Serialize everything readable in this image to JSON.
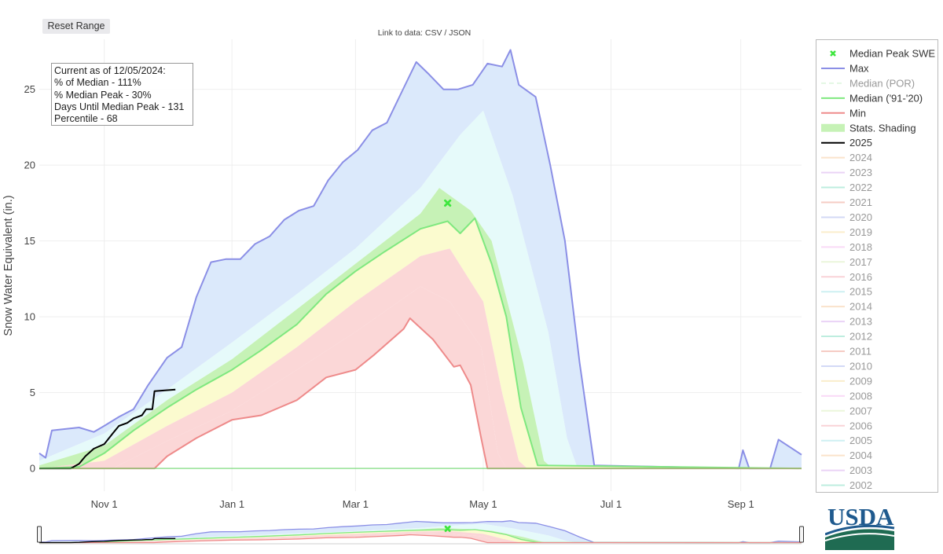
{
  "toolbar": {
    "reset_label": "Reset Range"
  },
  "data_links": {
    "prefix": "Link to data: ",
    "csv": "CSV",
    "separator": " / ",
    "json": "JSON"
  },
  "info_box": {
    "lines": [
      "Current as of 12/05/2024:",
      "% of Median - 111%",
      "% Median Peak - 30%",
      "Days Until Median Peak - 131",
      "Percentile - 68"
    ]
  },
  "colors": {
    "max": "#8b8fe6",
    "median_91_20": "#7fe87f",
    "min": "#ee8a8a",
    "current": "#000000",
    "peak_marker": "#3ee63e",
    "band_outer": "#dbe9fb",
    "band_upper": "#e6fafa",
    "band_mid": "#dff7d4",
    "band_median": "#c6f2b6",
    "band_low": "#fbfbcf",
    "band_lowest": "#fbd7d7"
  },
  "chart_data": {
    "type": "line",
    "xlabel": "",
    "ylabel": "Snow Water Equivalent (in.)",
    "x_axis": {
      "start": "2024-10-01",
      "end": "2025-09-30",
      "ticks": [
        {
          "date": "2024-11-01",
          "label": "Nov 1"
        },
        {
          "date": "2025-01-01",
          "label": "Jan 1"
        },
        {
          "date": "2025-03-01",
          "label": "Mar 1"
        },
        {
          "date": "2025-05-01",
          "label": "May 1"
        },
        {
          "date": "2025-07-01",
          "label": "Jul 1"
        },
        {
          "date": "2025-09-01",
          "label": "Sep 1"
        }
      ]
    },
    "ylim": [
      -1.5,
      28.3
    ],
    "yticks": [
      0,
      5,
      10,
      15,
      20,
      25
    ],
    "grid": true,
    "legend_placement": "right",
    "median_peak": {
      "date": "2025-04-14",
      "value": 17.5
    },
    "series": [
      {
        "name": "Max",
        "points": [
          [
            "2024-10-01",
            1.0
          ],
          [
            "2024-10-04",
            0.7
          ],
          [
            "2024-10-07",
            2.5
          ],
          [
            "2024-10-20",
            2.7
          ],
          [
            "2024-10-27",
            2.4
          ],
          [
            "2024-11-01",
            2.8
          ],
          [
            "2024-11-08",
            3.4
          ],
          [
            "2024-11-15",
            3.9
          ],
          [
            "2024-11-22",
            5.5
          ],
          [
            "2024-12-01",
            7.3
          ],
          [
            "2024-12-08",
            8.0
          ],
          [
            "2024-12-15",
            11.3
          ],
          [
            "2024-12-22",
            13.6
          ],
          [
            "2024-12-29",
            13.8
          ],
          [
            "2025-01-05",
            13.8
          ],
          [
            "2025-01-12",
            14.8
          ],
          [
            "2025-01-19",
            15.3
          ],
          [
            "2025-01-26",
            16.4
          ],
          [
            "2025-02-02",
            17.0
          ],
          [
            "2025-02-09",
            17.3
          ],
          [
            "2025-02-16",
            19.0
          ],
          [
            "2025-02-23",
            20.2
          ],
          [
            "2025-03-02",
            21.0
          ],
          [
            "2025-03-09",
            22.3
          ],
          [
            "2025-03-16",
            22.8
          ],
          [
            "2025-03-23",
            24.8
          ],
          [
            "2025-03-30",
            26.8
          ],
          [
            "2025-04-05",
            26.0
          ],
          [
            "2025-04-12",
            25.0
          ],
          [
            "2025-04-19",
            25.0
          ],
          [
            "2025-04-26",
            25.3
          ],
          [
            "2025-05-03",
            26.7
          ],
          [
            "2025-05-10",
            26.5
          ],
          [
            "2025-05-14",
            27.6
          ],
          [
            "2025-05-18",
            25.3
          ],
          [
            "2025-05-26",
            24.5
          ],
          [
            "2025-06-02",
            20.0
          ],
          [
            "2025-06-09",
            15.0
          ],
          [
            "2025-06-16",
            7.0
          ],
          [
            "2025-06-23",
            0.2
          ],
          [
            "2025-08-31",
            0.0
          ],
          [
            "2025-09-02",
            1.2
          ],
          [
            "2025-09-05",
            0.0
          ],
          [
            "2025-09-15",
            0.0
          ],
          [
            "2025-09-19",
            1.9
          ],
          [
            "2025-09-30",
            0.9
          ]
        ]
      },
      {
        "name": "Median ('91-'20)",
        "points": [
          [
            "2024-10-01",
            0.0
          ],
          [
            "2024-10-20",
            0.1
          ],
          [
            "2024-11-01",
            1.0
          ],
          [
            "2024-11-15",
            2.5
          ],
          [
            "2024-12-01",
            4.0
          ],
          [
            "2024-12-15",
            5.2
          ],
          [
            "2025-01-01",
            6.5
          ],
          [
            "2025-01-15",
            7.8
          ],
          [
            "2025-02-01",
            9.5
          ],
          [
            "2025-02-15",
            11.5
          ],
          [
            "2025-03-01",
            13.0
          ],
          [
            "2025-03-15",
            14.3
          ],
          [
            "2025-04-01",
            15.8
          ],
          [
            "2025-04-14",
            16.3
          ],
          [
            "2025-04-20",
            15.5
          ],
          [
            "2025-04-27",
            16.5
          ],
          [
            "2025-05-05",
            13.5
          ],
          [
            "2025-05-12",
            10.0
          ],
          [
            "2025-05-19",
            4.0
          ],
          [
            "2025-05-27",
            0.2
          ],
          [
            "2025-09-30",
            0.0
          ]
        ]
      },
      {
        "name": "Min",
        "points": [
          [
            "2024-10-01",
            0.0
          ],
          [
            "2024-11-25",
            0.0
          ],
          [
            "2024-12-01",
            0.8
          ],
          [
            "2024-12-15",
            2.0
          ],
          [
            "2025-01-01",
            3.2
          ],
          [
            "2025-01-15",
            3.5
          ],
          [
            "2025-02-01",
            4.5
          ],
          [
            "2025-02-15",
            6.0
          ],
          [
            "2025-03-01",
            6.5
          ],
          [
            "2025-03-10",
            7.5
          ],
          [
            "2025-03-24",
            9.2
          ],
          [
            "2025-03-27",
            9.9
          ],
          [
            "2025-04-07",
            8.5
          ],
          [
            "2025-04-17",
            6.7
          ],
          [
            "2025-04-20",
            6.8
          ],
          [
            "2025-04-25",
            5.5
          ],
          [
            "2025-04-30",
            2.0
          ],
          [
            "2025-05-03",
            0.0
          ],
          [
            "2025-09-30",
            0.0
          ]
        ]
      },
      {
        "name": "2025",
        "points": [
          [
            "2024-10-01",
            0.0
          ],
          [
            "2024-10-16",
            0.0
          ],
          [
            "2024-10-20",
            0.3
          ],
          [
            "2024-10-23",
            0.8
          ],
          [
            "2024-10-27",
            1.3
          ],
          [
            "2024-11-01",
            1.6
          ],
          [
            "2024-11-05",
            2.3
          ],
          [
            "2024-11-08",
            2.8
          ],
          [
            "2024-11-12",
            3.0
          ],
          [
            "2024-11-15",
            3.3
          ],
          [
            "2024-11-19",
            3.5
          ],
          [
            "2024-11-21",
            3.9
          ],
          [
            "2024-11-24",
            3.9
          ],
          [
            "2024-11-25",
            5.1
          ],
          [
            "2024-12-05",
            5.2
          ]
        ]
      }
    ],
    "bands": {
      "outer_max": "Max",
      "upper": [
        [
          "2024-10-01",
          0.5
        ],
        [
          "2024-11-01",
          2.3
        ],
        [
          "2024-12-01",
          5.2
        ],
        [
          "2025-01-01",
          8.3
        ],
        [
          "2025-02-01",
          11.5
        ],
        [
          "2025-03-01",
          14.5
        ],
        [
          "2025-04-01",
          18.5
        ],
        [
          "2025-04-20",
          22.0
        ],
        [
          "2025-05-01",
          23.6
        ],
        [
          "2025-05-15",
          18.0
        ],
        [
          "2025-06-01",
          9.0
        ],
        [
          "2025-06-10",
          2.0
        ],
        [
          "2025-06-15",
          0.0
        ],
        [
          "2025-09-30",
          0.0
        ]
      ],
      "p70": [
        [
          "2024-10-01",
          0.2
        ],
        [
          "2024-11-01",
          1.5
        ],
        [
          "2024-12-01",
          4.5
        ],
        [
          "2025-01-01",
          7.2
        ],
        [
          "2025-02-01",
          10.5
        ],
        [
          "2025-03-01",
          13.5
        ],
        [
          "2025-04-01",
          16.8
        ],
        [
          "2025-04-10",
          18.5
        ],
        [
          "2025-04-25",
          17.0
        ],
        [
          "2025-05-05",
          15.0
        ],
        [
          "2025-05-20",
          7.0
        ],
        [
          "2025-05-30",
          0.5
        ],
        [
          "2025-06-03",
          0.0
        ],
        [
          "2025-09-30",
          0.0
        ]
      ],
      "p30": [
        [
          "2024-10-01",
          0.0
        ],
        [
          "2024-11-01",
          0.5
        ],
        [
          "2024-12-01",
          2.8
        ],
        [
          "2025-01-01",
          5.0
        ],
        [
          "2025-02-01",
          8.0
        ],
        [
          "2025-03-01",
          11.0
        ],
        [
          "2025-04-01",
          14.0
        ],
        [
          "2025-04-15",
          14.5
        ],
        [
          "2025-05-01",
          11.0
        ],
        [
          "2025-05-10",
          5.0
        ],
        [
          "2025-05-18",
          0.5
        ],
        [
          "2025-05-22",
          0.0
        ],
        [
          "2025-09-30",
          0.0
        ]
      ],
      "p10": [
        [
          "2024-10-01",
          0.0
        ],
        [
          "2024-11-05",
          0.0
        ],
        [
          "2024-12-01",
          1.8
        ],
        [
          "2025-01-01",
          3.8
        ],
        [
          "2025-02-01",
          6.5
        ],
        [
          "2025-03-01",
          9.0
        ],
        [
          "2025-04-01",
          12.0
        ],
        [
          "2025-04-15",
          11.0
        ],
        [
          "2025-04-30",
          8.0
        ],
        [
          "2025-05-08",
          1.0
        ],
        [
          "2025-05-12",
          0.0
        ],
        [
          "2025-09-30",
          0.0
        ]
      ]
    }
  },
  "legend": [
    {
      "label": "Median Peak SWE",
      "kind": "marker",
      "color": "#3ee63e",
      "active": true
    },
    {
      "label": "Max",
      "kind": "line",
      "color": "#8b8fe6",
      "active": true
    },
    {
      "label": "Median (POR)",
      "kind": "dash",
      "color": "#c9f0c9",
      "active": false
    },
    {
      "label": "Median ('91-'20)",
      "kind": "line",
      "color": "#7fe87f",
      "active": true
    },
    {
      "label": "Min",
      "kind": "line",
      "color": "#ee8a8a",
      "active": true
    },
    {
      "label": "Stats. Shading",
      "kind": "band",
      "color": "#c6f2b6",
      "active": true
    },
    {
      "label": "2025",
      "kind": "line",
      "color": "#000000",
      "active": true
    },
    {
      "label": "2024",
      "kind": "line",
      "color": "#f6c899",
      "active": false
    },
    {
      "label": "2023",
      "kind": "line",
      "color": "#d7a9ee",
      "active": false
    },
    {
      "label": "2022",
      "kind": "line",
      "color": "#7fdcc0",
      "active": false
    },
    {
      "label": "2021",
      "kind": "line",
      "color": "#ef9a8a",
      "active": false
    },
    {
      "label": "2020",
      "kind": "line",
      "color": "#a9b4ee",
      "active": false
    },
    {
      "label": "2019",
      "kind": "line",
      "color": "#f7dc9a",
      "active": false
    },
    {
      "label": "2018",
      "kind": "line",
      "color": "#f4b6f0",
      "active": false
    },
    {
      "label": "2017",
      "kind": "line",
      "color": "#d8efb8",
      "active": false
    },
    {
      "label": "2016",
      "kind": "line",
      "color": "#f5a8b0",
      "active": false
    },
    {
      "label": "2015",
      "kind": "line",
      "color": "#9fe2e6",
      "active": false
    },
    {
      "label": "2014",
      "kind": "line",
      "color": "#f6c899",
      "active": false
    },
    {
      "label": "2013",
      "kind": "line",
      "color": "#d7a9ee",
      "active": false
    },
    {
      "label": "2012",
      "kind": "line",
      "color": "#7fdcc0",
      "active": false
    },
    {
      "label": "2011",
      "kind": "line",
      "color": "#ef9a8a",
      "active": false
    },
    {
      "label": "2010",
      "kind": "line",
      "color": "#a9b4ee",
      "active": false
    },
    {
      "label": "2009",
      "kind": "line",
      "color": "#f7dc9a",
      "active": false
    },
    {
      "label": "2008",
      "kind": "line",
      "color": "#f4b6f0",
      "active": false
    },
    {
      "label": "2007",
      "kind": "line",
      "color": "#d8efb8",
      "active": false
    },
    {
      "label": "2006",
      "kind": "line",
      "color": "#f5a8b0",
      "active": false
    },
    {
      "label": "2005",
      "kind": "line",
      "color": "#9fe2e6",
      "active": false
    },
    {
      "label": "2004",
      "kind": "line",
      "color": "#f6c899",
      "active": false
    },
    {
      "label": "2003",
      "kind": "line",
      "color": "#d7a9ee",
      "active": false
    },
    {
      "label": "2002",
      "kind": "line",
      "color": "#7fdcc0",
      "active": false
    }
  ],
  "logo": {
    "text": "USDA"
  }
}
